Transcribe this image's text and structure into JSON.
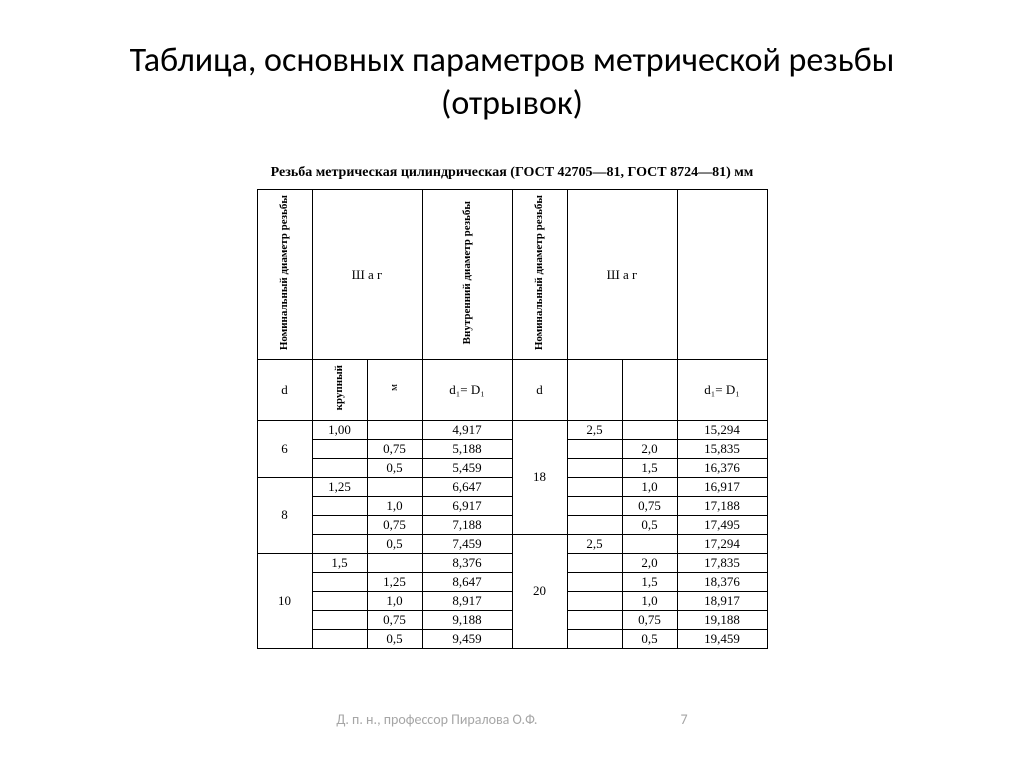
{
  "title": "Таблица, основных параметров метрической резьбы (отрывок)",
  "caption": "Резьба метрическая цилиндрическая (ГОСТ 42705—81, ГОСТ 8724—81) мм",
  "headers": {
    "nominal": "Номинальный\nдиаметр резьбы",
    "pitch": "Ш а г",
    "inner": "Внутренний\nдиаметр резьбы",
    "d": "d",
    "coarse": "крупный",
    "fine": "м",
    "d1eq": "d₁= D₁"
  },
  "left_rows": [
    {
      "d": "6",
      "span": 3,
      "cells": [
        [
          "1,00",
          "",
          "4,917"
        ],
        [
          "",
          "0,75",
          "5,188"
        ],
        [
          "",
          "0,5",
          "5,459"
        ]
      ]
    },
    {
      "d": "8",
      "span": 4,
      "cells": [
        [
          "1,25",
          "",
          "6,647"
        ],
        [
          "",
          "1,0",
          "6,917"
        ],
        [
          "",
          "0,75",
          "7,188"
        ],
        [
          "",
          "0,5",
          "7,459"
        ]
      ]
    },
    {
      "d": "10",
      "span": 5,
      "cells": [
        [
          "1,5",
          "",
          "8,376"
        ],
        [
          "",
          "1,25",
          "8,647"
        ],
        [
          "",
          "1,0",
          "8,917"
        ],
        [
          "",
          "0,75",
          "9,188"
        ],
        [
          "",
          "0,5",
          "9,459"
        ]
      ]
    }
  ],
  "right_rows": [
    {
      "d": "18",
      "span": 6,
      "cells": [
        [
          "2,5",
          "",
          "15,294"
        ],
        [
          "",
          "2,0",
          "15,835"
        ],
        [
          "",
          "1,5",
          "16,376"
        ],
        [
          "",
          "1,0",
          "16,917"
        ],
        [
          "",
          "0,75",
          "17,188"
        ],
        [
          "",
          "0,5",
          "17,495"
        ]
      ]
    },
    {
      "d": "20",
      "span": 6,
      "cells": [
        [
          "2,5",
          "",
          "17,294"
        ],
        [
          "",
          "2,0",
          "17,835"
        ],
        [
          "",
          "1,5",
          "18,376"
        ],
        [
          "",
          "1,0",
          "18,917"
        ],
        [
          "",
          "0,75",
          "19,188"
        ],
        [
          "",
          "0,5",
          "19,459"
        ]
      ]
    }
  ],
  "footer": {
    "author": "Д. п. н., профессор Пиралова О.Ф.",
    "page": "7"
  },
  "colors": {
    "text": "#000000",
    "footer": "#a6a6a6",
    "background": "#ffffff",
    "border": "#000000"
  }
}
